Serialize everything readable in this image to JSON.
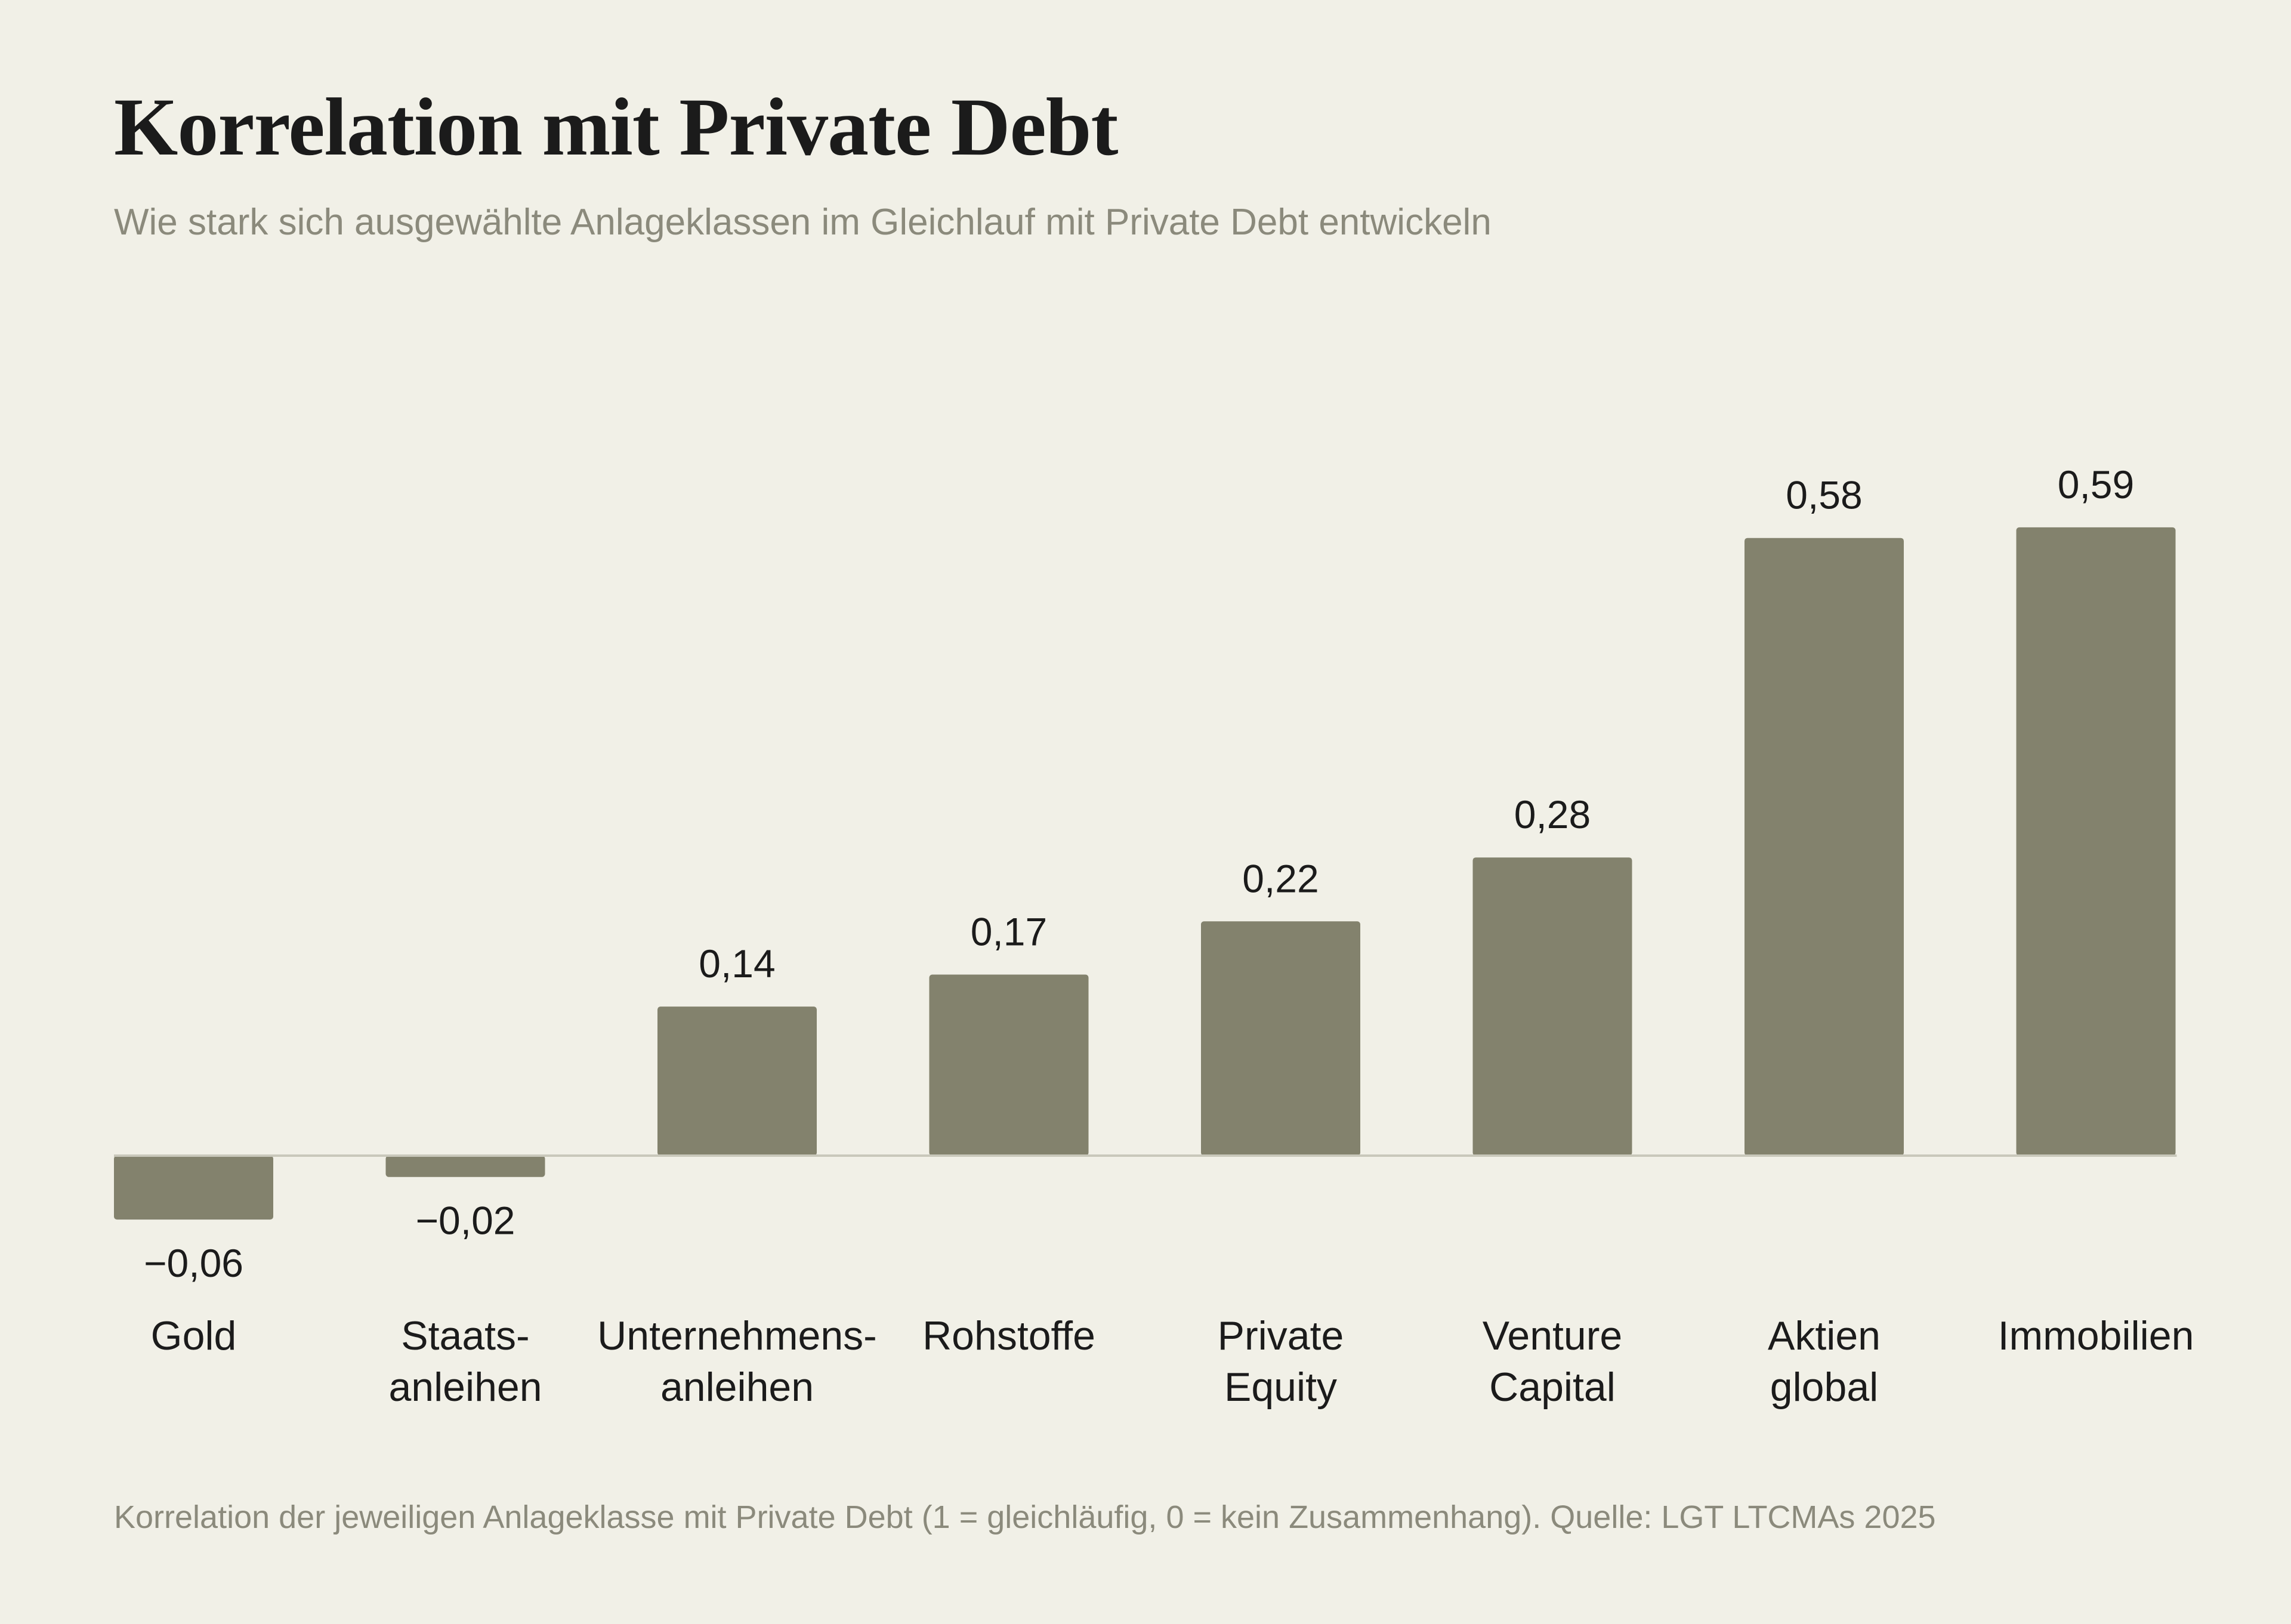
{
  "chart_data": {
    "type": "bar",
    "title": "Korrelation mit Private Debt",
    "subtitle": "Wie stark sich ausgewählte Anlageklassen im Gleichlauf mit Private Debt entwickeln",
    "categories": [
      "Gold",
      "Staats-\nanleihen",
      "Unternehmens-\nanleihen",
      "Rohstoffe",
      "Private\nEquity",
      "Venture\nCapital",
      "Aktien\nglobal",
      "Immobilien"
    ],
    "values": [
      -0.06,
      -0.02,
      0.14,
      0.17,
      0.22,
      0.28,
      0.58,
      0.59
    ],
    "data_labels": [
      "−0,06",
      "−0,02",
      "0,14",
      "0,17",
      "0,22",
      "0,28",
      "0,58",
      "0,59"
    ],
    "footnote": "Korrelation der jeweiligen Anlageklasse mit Private Debt (1 = gleichläufig, 0 = kein Zusammenhang). Quelle: LGT LTCMAs 2025",
    "grid": false,
    "legend": false
  },
  "colors": {
    "background": "#f1f0e7",
    "bar": "#83826d",
    "text": "#1b1b1b",
    "muted": "#8b8a7c",
    "zero_line": "#c9c8bb"
  }
}
